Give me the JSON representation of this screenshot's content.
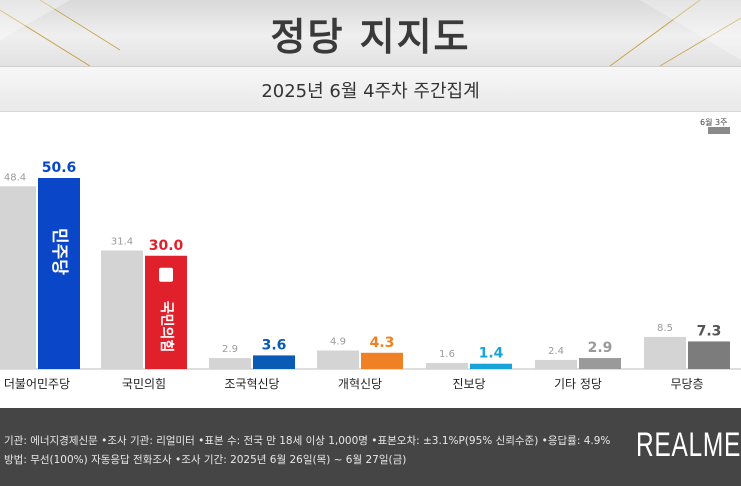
{
  "header": {
    "title": "정당 지지도",
    "subtitle": "2025년 6월 4주차 주간집계"
  },
  "legend": {
    "prev_week": "6월 3주"
  },
  "chart_data": {
    "type": "bar",
    "categories": [
      "더불어민주당",
      "국민의힘",
      "조국혁신당",
      "개혁신당",
      "진보당",
      "기타 정당",
      "무당층"
    ],
    "series": [
      {
        "name": "6월 3주",
        "values": [
          48.4,
          31.4,
          2.9,
          4.9,
          1.6,
          2.4,
          8.5
        ],
        "color": "#d4d4d4"
      },
      {
        "name": "",
        "values": [
          50.6,
          30.0,
          3.6,
          4.3,
          1.4,
          2.9,
          7.3
        ],
        "colors": [
          "#0a46c8",
          "#e0202a",
          "#0a5bb5",
          "#f08024",
          "#18a4d8",
          "#9a9a9a",
          "#7c7c7c"
        ],
        "label_colors": [
          "#0a46c8",
          "#e0202a",
          "#0a5bb5",
          "#f08024",
          "#18a4d8",
          "#9a9a9a",
          "#555555"
        ]
      }
    ],
    "bar_logos": [
      "민주당",
      "국민의힘"
    ],
    "ylim": [
      0,
      60
    ],
    "xlabel": "",
    "ylabel": "",
    "grid": false,
    "legend": "top-right"
  },
  "footer": {
    "line1": "기관: 에너지경제신문  •조사 기관: 리얼미터 •표본 수: 전국 만 18세 이상 1,000명 •표본오차: ±3.1%P(95% 신뢰수준) •응답률: 4.9%",
    "line2": "방법: 무선(100%) 자동응답 전화조사 •조사 기간: 2025년 6월 26일(목) ~ 6월 27일(금)",
    "logo": "REALMET"
  }
}
